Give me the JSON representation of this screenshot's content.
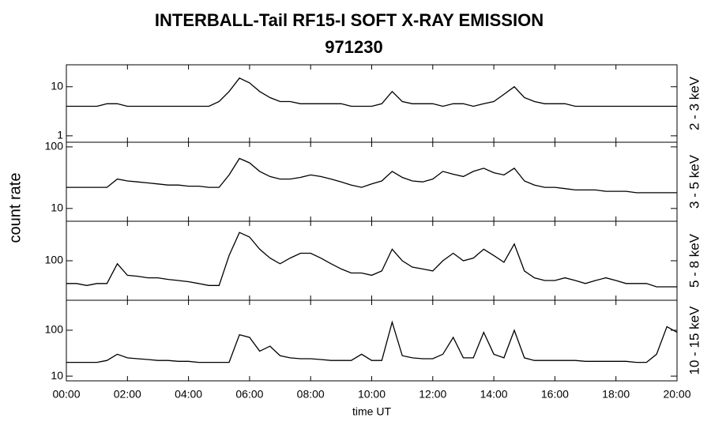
{
  "title": "INTERBALL-Tail RF15-I SOFT X-RAY EMISSION",
  "subtitle": "971230",
  "y_label": "count rate",
  "chart_data": [
    {
      "type": "line",
      "label": "2 - 3 keV",
      "log_y": true,
      "color": "#000000",
      "ylim": [
        0.74,
        28
      ],
      "yticks": [
        1,
        10
      ],
      "xlim": [
        0,
        20
      ],
      "x": [
        0,
        0.33,
        0.67,
        1,
        1.33,
        1.67,
        2,
        2.33,
        2.67,
        3,
        3.33,
        3.67,
        4,
        4.33,
        4.67,
        5,
        5.33,
        5.67,
        6,
        6.33,
        6.67,
        7,
        7.33,
        7.67,
        8,
        8.33,
        8.67,
        9,
        9.33,
        9.67,
        10,
        10.33,
        10.67,
        11,
        11.33,
        11.67,
        12,
        12.33,
        12.67,
        13,
        13.33,
        13.67,
        14,
        14.33,
        14.67,
        15,
        15.33,
        15.67,
        16,
        16.33,
        16.67,
        17,
        17.33,
        17.67,
        18,
        18.33,
        18.67,
        19,
        19.33,
        19.67,
        20
      ],
      "values": [
        4,
        4,
        4,
        4,
        4.5,
        4.5,
        4,
        4,
        4,
        4,
        4,
        4,
        4,
        4,
        4,
        5,
        8,
        15,
        12,
        8,
        6,
        5,
        5,
        4.5,
        4.5,
        4.5,
        4.5,
        4.5,
        4,
        4,
        4,
        4.5,
        8,
        5,
        4.5,
        4.5,
        4.5,
        4,
        4.5,
        4.5,
        4,
        4.5,
        5,
        7,
        10,
        6,
        5,
        4.5,
        4.5,
        4.5,
        4,
        4,
        4,
        4,
        4,
        4,
        4,
        4,
        4,
        4,
        4
      ]
    },
    {
      "type": "line",
      "label": "3 - 5 keV",
      "log_y": true,
      "color": "#000000",
      "ylim": [
        6.2,
        119
      ],
      "yticks": [
        10,
        100
      ],
      "xlim": [
        0,
        20
      ],
      "x": [
        0,
        0.33,
        0.67,
        1,
        1.33,
        1.67,
        2,
        2.33,
        2.67,
        3,
        3.33,
        3.67,
        4,
        4.33,
        4.67,
        5,
        5.33,
        5.67,
        6,
        6.33,
        6.67,
        7,
        7.33,
        7.67,
        8,
        8.33,
        8.67,
        9,
        9.33,
        9.67,
        10,
        10.33,
        10.67,
        11,
        11.33,
        11.67,
        12,
        12.33,
        12.67,
        13,
        13.33,
        13.67,
        14,
        14.33,
        14.67,
        15,
        15.33,
        15.67,
        16,
        16.33,
        16.67,
        17,
        17.33,
        17.67,
        18,
        18.33,
        18.67,
        19,
        19.33,
        19.67,
        20
      ],
      "values": [
        22,
        22,
        22,
        22,
        22,
        30,
        28,
        27,
        26,
        25,
        24,
        24,
        23,
        23,
        22,
        22,
        35,
        65,
        55,
        40,
        33,
        30,
        30,
        32,
        35,
        33,
        30,
        27,
        24,
        22,
        25,
        28,
        40,
        32,
        28,
        27,
        30,
        40,
        36,
        33,
        40,
        45,
        38,
        35,
        45,
        28,
        24,
        22,
        22,
        21,
        20,
        20,
        20,
        19,
        19,
        19,
        18,
        18,
        18,
        18,
        18
      ]
    },
    {
      "type": "line",
      "label": "5 - 8 keV",
      "log_y": true,
      "color": "#000000",
      "ylim": [
        25,
        400
      ],
      "yticks": [
        100
      ],
      "xlim": [
        0,
        20
      ],
      "x": [
        0,
        0.33,
        0.67,
        1,
        1.33,
        1.67,
        2,
        2.33,
        2.67,
        3,
        3.33,
        3.67,
        4,
        4.33,
        4.67,
        5,
        5.33,
        5.67,
        6,
        6.33,
        6.67,
        7,
        7.33,
        7.67,
        8,
        8.33,
        8.67,
        9,
        9.33,
        9.67,
        10,
        10.33,
        10.67,
        11,
        11.33,
        11.67,
        12,
        12.33,
        12.67,
        13,
        13.33,
        13.67,
        14,
        14.33,
        14.67,
        15,
        15.33,
        15.67,
        16,
        16.33,
        16.67,
        17,
        17.33,
        17.67,
        18,
        18.33,
        18.67,
        19,
        19.33,
        19.67,
        20
      ],
      "values": [
        45,
        45,
        42,
        45,
        45,
        90,
        60,
        58,
        55,
        55,
        52,
        50,
        48,
        45,
        42,
        42,
        120,
        270,
        230,
        150,
        110,
        90,
        110,
        130,
        130,
        110,
        90,
        75,
        65,
        65,
        60,
        70,
        150,
        100,
        80,
        75,
        70,
        100,
        130,
        100,
        110,
        150,
        120,
        95,
        180,
        70,
        55,
        50,
        50,
        55,
        50,
        45,
        50,
        55,
        50,
        45,
        45,
        45,
        40,
        40,
        40
      ]
    },
    {
      "type": "line",
      "label": "10 - 15 keV",
      "log_y": true,
      "color": "#000000",
      "ylim": [
        7.9,
        450
      ],
      "yticks": [
        10,
        100
      ],
      "xlim": [
        0,
        20
      ],
      "x_label": "time UT",
      "xticks": [
        {
          "value": 0,
          "label": "00:00"
        },
        {
          "value": 2,
          "label": "02:00"
        },
        {
          "value": 4,
          "label": "04:00"
        },
        {
          "value": 6,
          "label": "06:00"
        },
        {
          "value": 8,
          "label": "08:00"
        },
        {
          "value": 10,
          "label": "10:00"
        },
        {
          "value": 12,
          "label": "12:00"
        },
        {
          "value": 14,
          "label": "14:00"
        },
        {
          "value": 16,
          "label": "16:00"
        },
        {
          "value": 18,
          "label": "18:00"
        },
        {
          "value": 20,
          "label": "20:00"
        }
      ],
      "x": [
        0,
        0.33,
        0.67,
        1,
        1.33,
        1.67,
        2,
        2.33,
        2.67,
        3,
        3.33,
        3.67,
        4,
        4.33,
        4.67,
        5,
        5.33,
        5.67,
        6,
        6.33,
        6.67,
        7,
        7.33,
        7.67,
        8,
        8.33,
        8.67,
        9,
        9.33,
        9.67,
        10,
        10.33,
        10.67,
        11,
        11.33,
        11.67,
        12,
        12.33,
        12.67,
        13,
        13.33,
        13.67,
        14,
        14.33,
        14.67,
        15,
        15.33,
        15.67,
        16,
        16.33,
        16.67,
        17,
        17.33,
        17.67,
        18,
        18.33,
        18.67,
        19,
        19.33,
        19.67,
        20
      ],
      "values": [
        20,
        20,
        20,
        20,
        22,
        30,
        25,
        24,
        23,
        22,
        22,
        21,
        21,
        20,
        20,
        20,
        20,
        80,
        70,
        35,
        45,
        28,
        25,
        24,
        24,
        23,
        22,
        22,
        22,
        30,
        22,
        22,
        150,
        28,
        25,
        24,
        24,
        30,
        70,
        25,
        25,
        90,
        30,
        25,
        100,
        25,
        22,
        22,
        22,
        22,
        22,
        21,
        21,
        21,
        21,
        21,
        20,
        20,
        30,
        120,
        90
      ]
    }
  ]
}
